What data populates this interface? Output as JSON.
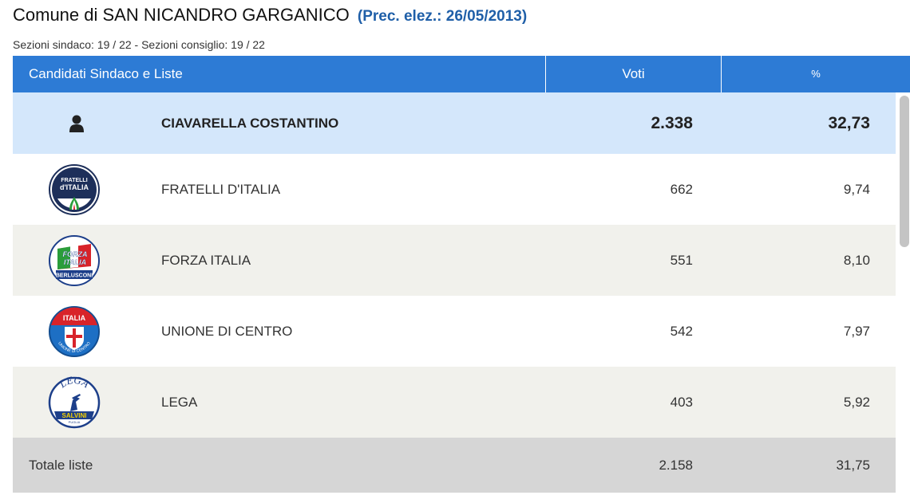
{
  "title": {
    "comune": "Comune di SAN NICANDRO GARGANICO",
    "prec": "(Prec. elez.: 26/05/2013)"
  },
  "subtitle": "Sezioni sindaco: 19 / 22 - Sezioni consiglio: 19 / 22",
  "table": {
    "headers": {
      "name": "Candidati Sindaco e Liste",
      "votes": "Voti",
      "pct": "%"
    },
    "candidate": {
      "name": "CIAVARELLA COSTANTINO",
      "votes": "2.338",
      "pct": "32,73",
      "icon": "person-icon"
    },
    "lists": [
      {
        "name": "FRATELLI D'ITALIA",
        "votes": "662",
        "pct": "9,74",
        "icon": "fratelli-ditalia-logo",
        "logo_text_1": "FRATELLI",
        "logo_text_2": "d'ITALIA"
      },
      {
        "name": "FORZA ITALIA",
        "votes": "551",
        "pct": "8,10",
        "icon": "forza-italia-logo",
        "logo_text_1": "FORZA",
        "logo_text_2": "ITALIA",
        "logo_text_3": "BERLUSCONI"
      },
      {
        "name": "UNIONE DI CENTRO",
        "votes": "542",
        "pct": "7,97",
        "icon": "udc-logo",
        "logo_text_1": "ITALIA",
        "logo_text_2": "UNIONE DI CENTRO"
      },
      {
        "name": "LEGA",
        "votes": "403",
        "pct": "5,92",
        "icon": "lega-logo",
        "logo_text_1": "LEGA",
        "logo_text_2": "SALVINI",
        "logo_text_3": "PUGLIA"
      }
    ],
    "total": {
      "label": "Totale liste",
      "votes": "2.158",
      "pct": "31,75"
    }
  },
  "colors": {
    "header_bg": "#2d7bd5",
    "candidate_bg": "#d4e7fb",
    "total_bg": "#d6d6d6",
    "prec_text": "#1f5fa8"
  }
}
